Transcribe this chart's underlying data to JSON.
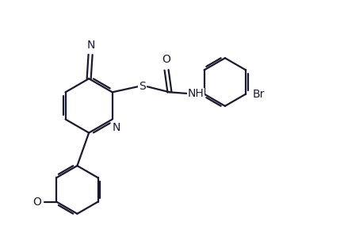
{
  "bg_color": "#ffffff",
  "line_color": "#1a1a2e",
  "line_width": 1.6,
  "font_size": 10,
  "figsize": [
    4.34,
    2.94
  ],
  "dpi": 100,
  "xlim": [
    0,
    10.5
  ],
  "ylim": [
    0,
    7.5
  ]
}
